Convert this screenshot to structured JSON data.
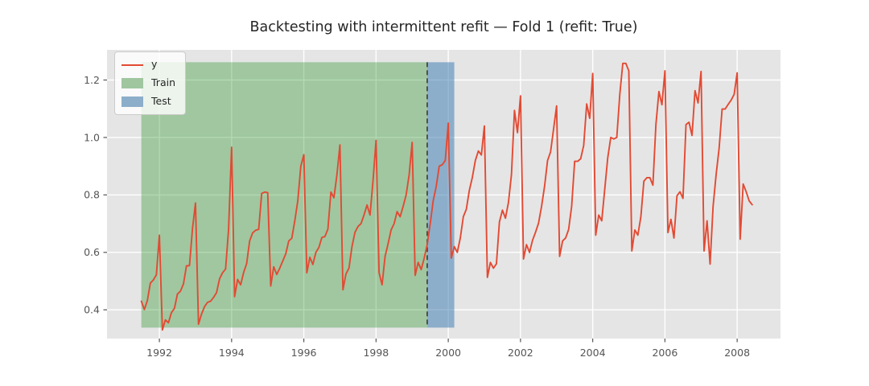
{
  "figure": {
    "title": "Backtesting with intermittent refit — Fold 1 (refit: True)",
    "background": "#ffffff",
    "axes_background": "#e5e5e5",
    "grid_color": "#ffffff",
    "tick_color": "#555555",
    "tick_label_color": "#555555",
    "title_color": "#262626"
  },
  "legend": {
    "items": [
      {
        "label": "y",
        "type": "line",
        "color": "#e24a33"
      },
      {
        "label": "Train",
        "type": "patch",
        "color": "#a0c6a0"
      },
      {
        "label": "Test",
        "type": "patch",
        "color": "#8daeca"
      }
    ]
  },
  "chart_data": {
    "type": "line",
    "title": "Backtesting with intermittent refit — Fold 1 (refit: True)",
    "xlabel": "",
    "ylabel": "",
    "x_start": {
      "year": 1991,
      "month": 7
    },
    "frequency": "monthly",
    "xlim": [
      1990.55,
      2009.2
    ],
    "ylim": [
      0.3,
      1.305
    ],
    "x_ticks": [
      1992,
      1994,
      1996,
      1998,
      2000,
      2002,
      2004,
      2006,
      2008
    ],
    "x_tick_labels": [
      "1992",
      "1994",
      "1996",
      "1998",
      "2000",
      "2002",
      "2004",
      "2006",
      "2008"
    ],
    "y_ticks": [
      0.4,
      0.6,
      0.8,
      1.0,
      1.2
    ],
    "y_tick_labels": [
      "0.4",
      "0.6",
      "0.8",
      "1.0",
      "1.2"
    ],
    "grid": true,
    "legend_position": "upper left",
    "regions": [
      {
        "name": "Train",
        "x0": 1991.5,
        "x1": 1999.4167,
        "y0": 0.338,
        "y1": 1.262,
        "color": "rgba(0,128,0,0.30)"
      },
      {
        "name": "Test",
        "x0": 1999.4167,
        "x1": 2000.1667,
        "y0": 0.338,
        "y1": 1.262,
        "color": "rgba(70,130,180,0.55)"
      }
    ],
    "boundary_line": {
      "x": 1999.4167,
      "style": "dashed",
      "color": "#3a3a3a"
    },
    "series": [
      {
        "name": "y",
        "color": "#e24a33",
        "values": [
          0.43,
          0.401,
          0.432,
          0.493,
          0.504,
          0.522,
          0.66,
          0.33,
          0.365,
          0.355,
          0.39,
          0.405,
          0.455,
          0.465,
          0.49,
          0.553,
          0.554,
          0.682,
          0.772,
          0.35,
          0.385,
          0.411,
          0.426,
          0.43,
          0.443,
          0.46,
          0.508,
          0.529,
          0.542,
          0.681,
          0.966,
          0.446,
          0.506,
          0.487,
          0.53,
          0.561,
          0.64,
          0.668,
          0.677,
          0.68,
          0.805,
          0.81,
          0.808,
          0.483,
          0.55,
          0.523,
          0.545,
          0.57,
          0.595,
          0.64,
          0.649,
          0.71,
          0.78,
          0.9,
          0.94,
          0.529,
          0.583,
          0.558,
          0.6,
          0.617,
          0.652,
          0.655,
          0.681,
          0.81,
          0.79,
          0.87,
          0.974,
          0.47,
          0.525,
          0.545,
          0.62,
          0.67,
          0.69,
          0.7,
          0.73,
          0.765,
          0.73,
          0.85,
          0.99,
          0.53,
          0.487,
          0.586,
          0.63,
          0.678,
          0.7,
          0.742,
          0.724,
          0.76,
          0.8,
          0.87,
          0.983,
          0.52,
          0.565,
          0.54,
          0.58,
          0.627,
          0.7,
          0.78,
          0.83,
          0.9,
          0.905,
          0.92,
          1.05,
          0.58,
          0.62,
          0.6,
          0.65,
          0.724,
          0.75,
          0.816,
          0.861,
          0.92,
          0.953,
          0.939,
          1.04,
          0.513,
          0.565,
          0.545,
          0.56,
          0.706,
          0.747,
          0.719,
          0.774,
          0.871,
          1.094,
          1.017,
          1.145,
          0.577,
          0.627,
          0.6,
          0.642,
          0.67,
          0.702,
          0.76,
          0.83,
          0.92,
          0.95,
          1.03,
          1.11,
          0.586,
          0.64,
          0.65,
          0.68,
          0.76,
          0.917,
          0.917,
          0.926,
          0.972,
          1.117,
          1.067,
          1.223,
          0.66,
          0.73,
          0.71,
          0.82,
          0.93,
          1.0,
          0.995,
          1.0,
          1.15,
          1.258,
          1.258,
          1.232,
          0.605,
          0.678,
          0.66,
          0.724,
          0.848,
          0.86,
          0.86,
          0.834,
          1.045,
          1.16,
          1.114,
          1.232,
          0.669,
          0.715,
          0.65,
          0.797,
          0.811,
          0.788,
          1.045,
          1.053,
          1.007,
          1.163,
          1.12,
          1.23,
          0.605,
          0.71,
          0.559,
          0.76,
          0.87,
          0.962,
          1.099,
          1.099,
          1.115,
          1.13,
          1.15,
          1.225,
          0.646,
          0.838,
          0.811,
          0.779,
          0.766
        ]
      }
    ]
  }
}
